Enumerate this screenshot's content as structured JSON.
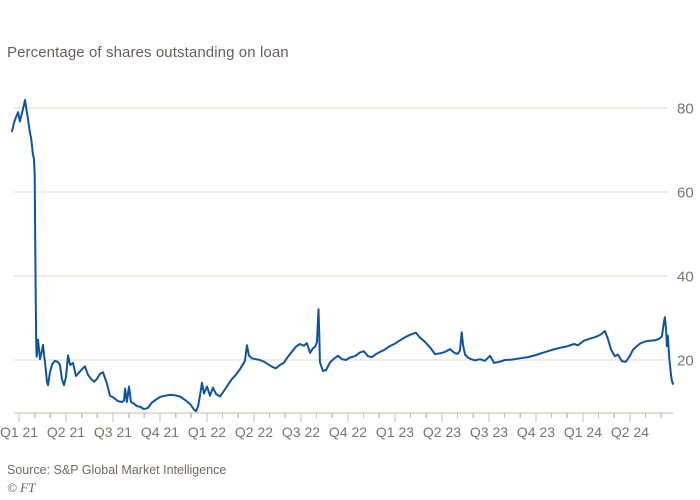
{
  "title": "Percentage of shares outstanding on loan",
  "source": "Source: S&P Global Market Intelligence",
  "ft_mark": "© FT",
  "colors": {
    "line": "#10549e",
    "grid": "#e3d9ce",
    "axis": "#c9beb3",
    "tick_label": "#7b746d",
    "title": "#66605c",
    "source": "#6f6962"
  },
  "chart_data": {
    "type": "line",
    "title": "Percentage of shares outstanding on loan",
    "legend": "none",
    "grid": "horizontal-only",
    "x_axis": {
      "unit": "months since Jan 2021",
      "range_months": [
        -0.45,
        41.75
      ],
      "quarter_labels": [
        "Q1 21",
        "Q2 21",
        "Q3 21",
        "Q4 21",
        "Q1 22",
        "Q2 22",
        "Q3 22",
        "Q4 22",
        "Q1 23",
        "Q2 23",
        "Q3 23",
        "Q4 23",
        "Q1 24",
        "Q2 24"
      ],
      "quarter_label_months": [
        0,
        3,
        6,
        9,
        12,
        15,
        18,
        21,
        24,
        27,
        30,
        33,
        36,
        39
      ],
      "minor_tick_every_months": 1
    },
    "y_axis": {
      "ticks": [
        20,
        40,
        60,
        80
      ],
      "ylim": [
        7.4,
        82
      ],
      "label_side": "right"
    },
    "series": [
      {
        "name": "Percentage of shares outstanding on loan",
        "points": [
          [
            -0.45,
            74.5
          ],
          [
            -0.32,
            76.5
          ],
          [
            -0.19,
            77.8
          ],
          [
            -0.06,
            79.0
          ],
          [
            0.06,
            76.8
          ],
          [
            0.19,
            78.8
          ],
          [
            0.32,
            80.8
          ],
          [
            0.38,
            81.9
          ],
          [
            0.45,
            80.3
          ],
          [
            0.57,
            77.5
          ],
          [
            0.7,
            74.0
          ],
          [
            0.77,
            72.9
          ],
          [
            0.89,
            69.0
          ],
          [
            0.96,
            67.8
          ],
          [
            1.0,
            64.0
          ],
          [
            1.03,
            52.0
          ],
          [
            1.06,
            38.0
          ],
          [
            1.09,
            26.0
          ],
          [
            1.11,
            22.4
          ],
          [
            1.13,
            20.8
          ],
          [
            1.21,
            24.8
          ],
          [
            1.34,
            20.2
          ],
          [
            1.45,
            22.0
          ],
          [
            1.53,
            23.6
          ],
          [
            1.6,
            21.0
          ],
          [
            1.66,
            19.5
          ],
          [
            1.79,
            14.8
          ],
          [
            1.85,
            14.0
          ],
          [
            1.98,
            17.1
          ],
          [
            2.11,
            19.0
          ],
          [
            2.3,
            19.8
          ],
          [
            2.49,
            19.5
          ],
          [
            2.62,
            18.8
          ],
          [
            2.74,
            15.5
          ],
          [
            2.87,
            14.0
          ],
          [
            3.0,
            16.0
          ],
          [
            3.13,
            21.1
          ],
          [
            3.26,
            18.8
          ],
          [
            3.45,
            19.3
          ],
          [
            3.64,
            16.2
          ],
          [
            3.83,
            17.0
          ],
          [
            4.02,
            17.8
          ],
          [
            4.21,
            18.5
          ],
          [
            4.4,
            16.5
          ],
          [
            4.6,
            15.5
          ],
          [
            4.79,
            14.8
          ],
          [
            4.98,
            15.5
          ],
          [
            5.17,
            16.7
          ],
          [
            5.36,
            17.1
          ],
          [
            5.62,
            14.3
          ],
          [
            5.81,
            11.5
          ],
          [
            6.06,
            11.0
          ],
          [
            6.32,
            10.2
          ],
          [
            6.57,
            10.0
          ],
          [
            6.7,
            10.3
          ],
          [
            6.77,
            13.2
          ],
          [
            6.89,
            10.0
          ],
          [
            7.02,
            13.7
          ],
          [
            7.15,
            10.0
          ],
          [
            7.34,
            9.6
          ],
          [
            7.53,
            9.0
          ],
          [
            7.72,
            8.9
          ],
          [
            7.98,
            8.3
          ],
          [
            8.23,
            8.6
          ],
          [
            8.49,
            9.9
          ],
          [
            8.75,
            10.6
          ],
          [
            9.0,
            11.2
          ],
          [
            9.32,
            11.5
          ],
          [
            9.64,
            11.7
          ],
          [
            9.96,
            11.6
          ],
          [
            10.28,
            11.3
          ],
          [
            10.6,
            10.5
          ],
          [
            10.92,
            9.5
          ],
          [
            11.17,
            8.2
          ],
          [
            11.3,
            7.8
          ],
          [
            11.43,
            9.0
          ],
          [
            11.55,
            11.4
          ],
          [
            11.68,
            14.6
          ],
          [
            11.81,
            12.0
          ],
          [
            12.0,
            13.7
          ],
          [
            12.19,
            11.5
          ],
          [
            12.38,
            13.4
          ],
          [
            12.58,
            11.9
          ],
          [
            12.83,
            11.3
          ],
          [
            13.09,
            12.7
          ],
          [
            13.34,
            14.1
          ],
          [
            13.6,
            15.5
          ],
          [
            13.85,
            16.5
          ],
          [
            14.11,
            17.8
          ],
          [
            14.3,
            19.0
          ],
          [
            14.43,
            19.8
          ],
          [
            14.55,
            23.5
          ],
          [
            14.68,
            21.0
          ],
          [
            14.87,
            20.4
          ],
          [
            15.13,
            20.2
          ],
          [
            15.38,
            20.0
          ],
          [
            15.64,
            19.6
          ],
          [
            15.89,
            19.0
          ],
          [
            16.15,
            18.4
          ],
          [
            16.4,
            18.0
          ],
          [
            16.66,
            18.8
          ],
          [
            16.92,
            19.4
          ],
          [
            17.17,
            20.8
          ],
          [
            17.43,
            22.0
          ],
          [
            17.68,
            23.2
          ],
          [
            17.94,
            23.8
          ],
          [
            18.19,
            23.4
          ],
          [
            18.38,
            24.0
          ],
          [
            18.58,
            21.7
          ],
          [
            18.77,
            22.8
          ],
          [
            18.89,
            23.1
          ],
          [
            19.02,
            24.2
          ],
          [
            19.08,
            29.0
          ],
          [
            19.12,
            32.1
          ],
          [
            19.17,
            26.0
          ],
          [
            19.21,
            19.5
          ],
          [
            19.4,
            17.4
          ],
          [
            19.6,
            17.6
          ],
          [
            19.85,
            19.4
          ],
          [
            20.11,
            20.3
          ],
          [
            20.36,
            21.0
          ],
          [
            20.62,
            20.2
          ],
          [
            20.87,
            20.0
          ],
          [
            21.13,
            20.6
          ],
          [
            21.45,
            20.9
          ],
          [
            21.77,
            21.8
          ],
          [
            22.02,
            22.1
          ],
          [
            22.28,
            20.9
          ],
          [
            22.53,
            20.7
          ],
          [
            22.79,
            21.4
          ],
          [
            23.04,
            21.9
          ],
          [
            23.36,
            22.5
          ],
          [
            23.68,
            23.3
          ],
          [
            24.0,
            23.9
          ],
          [
            24.32,
            24.7
          ],
          [
            24.64,
            25.4
          ],
          [
            24.96,
            26.0
          ],
          [
            25.34,
            26.5
          ],
          [
            25.6,
            25.3
          ],
          [
            25.92,
            24.3
          ],
          [
            26.24,
            23.0
          ],
          [
            26.56,
            21.4
          ],
          [
            26.88,
            21.6
          ],
          [
            27.19,
            21.9
          ],
          [
            27.51,
            22.6
          ],
          [
            27.83,
            21.6
          ],
          [
            28.02,
            21.5
          ],
          [
            28.15,
            22.3
          ],
          [
            28.26,
            26.6
          ],
          [
            28.35,
            23.5
          ],
          [
            28.47,
            21.3
          ],
          [
            28.66,
            20.6
          ],
          [
            28.79,
            20.3
          ],
          [
            29.11,
            19.9
          ],
          [
            29.43,
            20.2
          ],
          [
            29.74,
            19.8
          ],
          [
            30.07,
            21.0
          ],
          [
            30.32,
            19.3
          ],
          [
            30.7,
            19.6
          ],
          [
            31.02,
            20.0
          ],
          [
            31.47,
            20.1
          ],
          [
            31.98,
            20.4
          ],
          [
            32.49,
            20.7
          ],
          [
            33.0,
            21.2
          ],
          [
            33.51,
            21.8
          ],
          [
            34.02,
            22.4
          ],
          [
            34.53,
            22.9
          ],
          [
            35.04,
            23.3
          ],
          [
            35.43,
            23.8
          ],
          [
            35.68,
            23.5
          ],
          [
            36.06,
            24.6
          ],
          [
            36.45,
            25.1
          ],
          [
            36.83,
            25.5
          ],
          [
            37.15,
            26.1
          ],
          [
            37.4,
            26.9
          ],
          [
            37.6,
            25.0
          ],
          [
            37.79,
            22.5
          ],
          [
            38.04,
            20.9
          ],
          [
            38.23,
            21.3
          ],
          [
            38.49,
            19.7
          ],
          [
            38.74,
            19.6
          ],
          [
            39.0,
            21.0
          ],
          [
            39.19,
            22.4
          ],
          [
            39.38,
            23.1
          ],
          [
            39.64,
            23.9
          ],
          [
            39.96,
            24.4
          ],
          [
            40.28,
            24.6
          ],
          [
            40.6,
            24.7
          ],
          [
            40.85,
            25.0
          ],
          [
            41.04,
            25.6
          ],
          [
            41.17,
            29.0
          ],
          [
            41.23,
            30.2
          ],
          [
            41.3,
            27.5
          ],
          [
            41.36,
            23.3
          ],
          [
            41.42,
            25.8
          ],
          [
            41.52,
            20.0
          ],
          [
            41.62,
            16.5
          ],
          [
            41.68,
            15.0
          ],
          [
            41.75,
            14.3
          ]
        ]
      }
    ]
  }
}
